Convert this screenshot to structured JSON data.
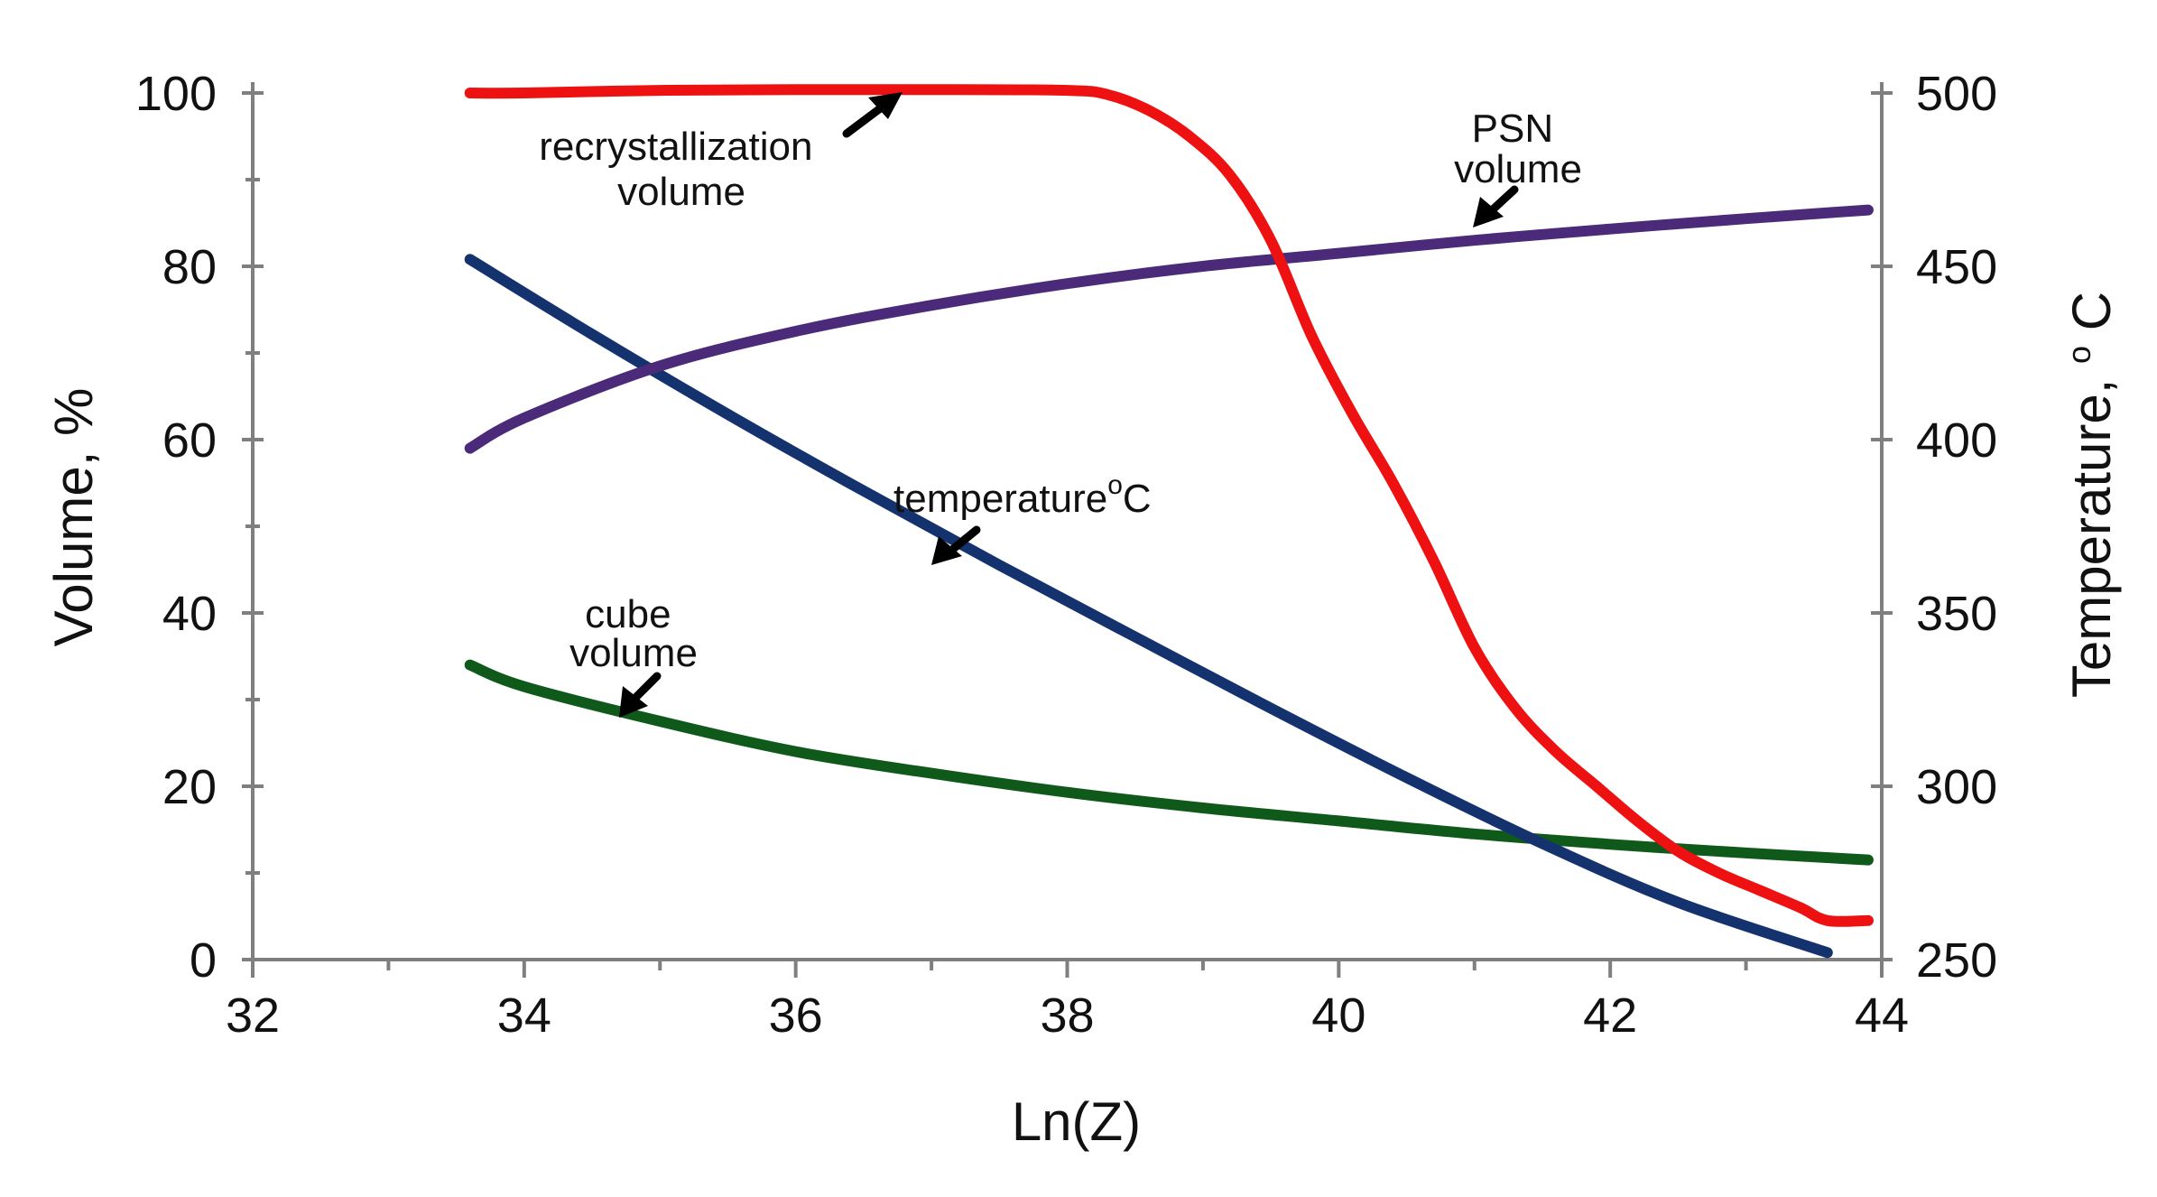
{
  "chart_data": {
    "type": "line",
    "title": "",
    "xlabel": "Ln(Z)",
    "ylabel_left": "Volume, %",
    "ylabel_right": "Temperature, °C",
    "ylabel_right_parts": {
      "main": "Temperature,",
      "sup": "o",
      "unit": "C"
    },
    "xlim": [
      32,
      44
    ],
    "ylim_left": [
      0,
      100
    ],
    "ylim_right": [
      250,
      500
    ],
    "x_ticks": [
      32,
      34,
      36,
      38,
      40,
      42,
      44
    ],
    "y_left_ticks": [
      0,
      20,
      40,
      60,
      80,
      100
    ],
    "y_right_ticks": [
      250,
      300,
      350,
      400,
      450,
      500
    ],
    "grid": false,
    "series": [
      {
        "name": "recrystallization volume",
        "axis": "left",
        "color": "#ee1111",
        "x": [
          33.6,
          34,
          35,
          36,
          37,
          38,
          38.3,
          38.6,
          38.9,
          39.2,
          39.5,
          39.8,
          40.1,
          40.4,
          40.7,
          41.0,
          41.3,
          41.6,
          41.9,
          42.2,
          42.5,
          42.8,
          43.1,
          43.4,
          43.6,
          43.9
        ],
        "values": [
          100,
          100,
          100.3,
          100.4,
          100.4,
          100.3,
          99.8,
          98,
          95,
          90.5,
          83,
          72,
          63,
          55,
          46,
          36,
          29,
          24,
          20,
          16,
          12.5,
          10,
          8,
          6,
          4.5,
          4.5
        ]
      },
      {
        "name": "PSN volume",
        "axis": "left",
        "color": "#4b2a7a",
        "x": [
          33.6,
          34,
          35,
          36,
          37,
          38,
          39,
          40,
          41,
          42,
          43,
          43.9
        ],
        "values": [
          59,
          62.5,
          68.5,
          72.5,
          75.5,
          78,
          80,
          81.5,
          83,
          84.3,
          85.5,
          86.5
        ]
      },
      {
        "name": "temperature °C",
        "axis": "right",
        "color": "#14326e",
        "x": [
          33.6,
          34.5,
          35.5,
          36.5,
          37.5,
          38.5,
          39.5,
          40.5,
          41.5,
          42.5,
          43.6
        ],
        "values": [
          452,
          430.4,
          407.3,
          385.2,
          363.8,
          343.1,
          322.5,
          302.5,
          283.5,
          266.5,
          252
        ]
      },
      {
        "name": "cube volume",
        "axis": "left",
        "color": "#0f5a1a",
        "x": [
          33.6,
          34,
          35,
          36,
          37,
          38,
          39,
          40,
          41,
          42,
          43,
          43.9
        ],
        "values": [
          34,
          31.5,
          27.5,
          24,
          21.5,
          19.3,
          17.5,
          16,
          14.5,
          13.3,
          12.3,
          11.5
        ]
      }
    ],
    "annotations": [
      {
        "lines": [
          "recrystallization",
          "volume"
        ],
        "points_to": {
          "series": "recrystallization volume",
          "x": 37.1
        }
      },
      {
        "lines": [
          "PSN",
          "volume"
        ],
        "points_to": {
          "series": "PSN volume",
          "x": 41.6
        }
      },
      {
        "lines": [
          "temperature",
          "o",
          "C"
        ],
        "points_to": {
          "series": "temperature °C",
          "x": 37.3
        }
      },
      {
        "lines": [
          "cube",
          "volume"
        ],
        "points_to": {
          "series": "cube volume",
          "x": 34.8
        }
      }
    ]
  }
}
